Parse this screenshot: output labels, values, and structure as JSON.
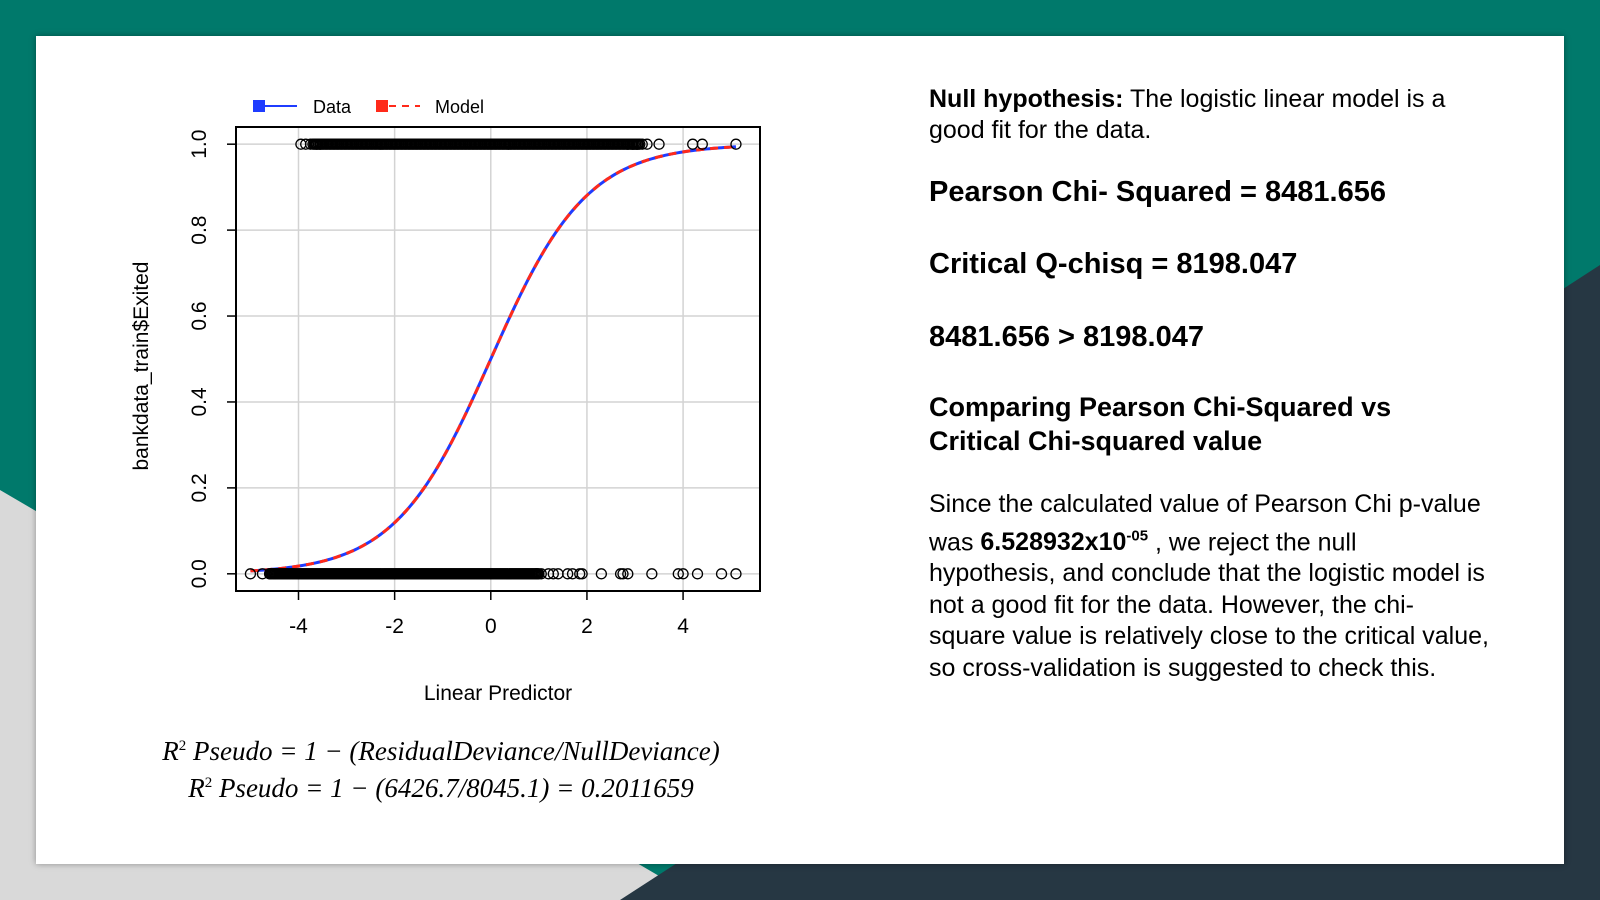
{
  "colors": {
    "teal": "#00796b",
    "navy": "#263743",
    "light_gray": "#d9d9d9",
    "data_blue": "#1f3cff",
    "model_red": "#ff2a1a"
  },
  "chart_data": {
    "type": "scatter",
    "xlabel": "Linear Predictor",
    "ylabel": "bankdata_train$Exited",
    "xlim": [
      -5.3,
      5.6
    ],
    "ylim": [
      -0.04,
      1.04
    ],
    "x_ticks": [
      -4,
      -2,
      0,
      2,
      4
    ],
    "x_tick_labels": [
      "-4",
      "-2",
      "0",
      "2",
      "4"
    ],
    "y_ticks": [
      0.0,
      0.2,
      0.4,
      0.6,
      0.8,
      1.0
    ],
    "y_tick_labels": [
      "0.0",
      "0.2",
      "0.4",
      "0.6",
      "0.8",
      "1.0"
    ],
    "grid": true,
    "legend_position": "top",
    "legend": [
      "Data",
      "Model"
    ],
    "series": [
      {
        "name": "Data",
        "kind": "points",
        "dense_ranges": [
          {
            "y": 1,
            "x_from": -3.7,
            "x_to": 3.1
          },
          {
            "y": 0,
            "x_from": -4.6,
            "x_to": 1.0
          }
        ],
        "points": [
          {
            "x": -3.95,
            "y": 1
          },
          {
            "x": -3.85,
            "y": 1
          },
          {
            "x": -3.75,
            "y": 1
          },
          {
            "x": -3.62,
            "y": 1
          },
          {
            "x": -3.55,
            "y": 1
          },
          {
            "x": 2.85,
            "y": 1
          },
          {
            "x": 2.95,
            "y": 1
          },
          {
            "x": 3.05,
            "y": 1
          },
          {
            "x": 3.15,
            "y": 1
          },
          {
            "x": 3.25,
            "y": 1
          },
          {
            "x": 3.5,
            "y": 1
          },
          {
            "x": 4.2,
            "y": 1
          },
          {
            "x": 4.4,
            "y": 1
          },
          {
            "x": 5.1,
            "y": 1
          },
          {
            "x": -5.0,
            "y": 0
          },
          {
            "x": -4.75,
            "y": 0
          },
          {
            "x": -4.6,
            "y": 0
          },
          {
            "x": -4.5,
            "y": 0
          },
          {
            "x": 0.95,
            "y": 0
          },
          {
            "x": 1.05,
            "y": 0
          },
          {
            "x": 1.2,
            "y": 0
          },
          {
            "x": 1.3,
            "y": 0
          },
          {
            "x": 1.4,
            "y": 0
          },
          {
            "x": 1.6,
            "y": 0
          },
          {
            "x": 1.7,
            "y": 0
          },
          {
            "x": 1.85,
            "y": 0
          },
          {
            "x": 1.9,
            "y": 0
          },
          {
            "x": 2.3,
            "y": 0
          },
          {
            "x": 2.7,
            "y": 0
          },
          {
            "x": 2.75,
            "y": 0
          },
          {
            "x": 2.85,
            "y": 0
          },
          {
            "x": 3.35,
            "y": 0
          },
          {
            "x": 3.9,
            "y": 0
          },
          {
            "x": 4.0,
            "y": 0
          },
          {
            "x": 4.3,
            "y": 0
          },
          {
            "x": 4.8,
            "y": 0
          },
          {
            "x": 5.1,
            "y": 0
          }
        ]
      },
      {
        "name": "Model",
        "kind": "logistic_curve",
        "x_from": -5.0,
        "x_to": 5.1
      }
    ]
  },
  "formulas": {
    "line1_lhs": "R",
    "line1_sup": "2",
    "line1_rhs": " Pseudo = 1 − (ResidualDeviance/NullDeviance)",
    "line2_lhs": "R",
    "line2_sup": "2",
    "line2_rhs": " Pseudo = 1 − (6426.7/8045.1) = 0.2011659"
  },
  "right": {
    "null_label": "Null hypothesis:",
    "null_text": " The logistic linear model is a good fit for the data.",
    "pearson": "Pearson Chi- Squared = 8481.656",
    "critical": "Critical Q-chisq = 8198.047",
    "comparison": "8481.656 > 8198.047",
    "heading": "Comparing Pearson Chi-Squared vs Critical Chi-squared value",
    "conclusion_pre": "Since the calculated value of Pearson Chi p-value was ",
    "pvalue_base": "6.528932x10",
    "pvalue_exp": "-05",
    "conclusion_post": " , we reject the null hypothesis, and conclude that the logistic model is not a good fit for the data. However, the chi-square value is relatively close to the critical value, so cross-validation is suggested to check this."
  }
}
